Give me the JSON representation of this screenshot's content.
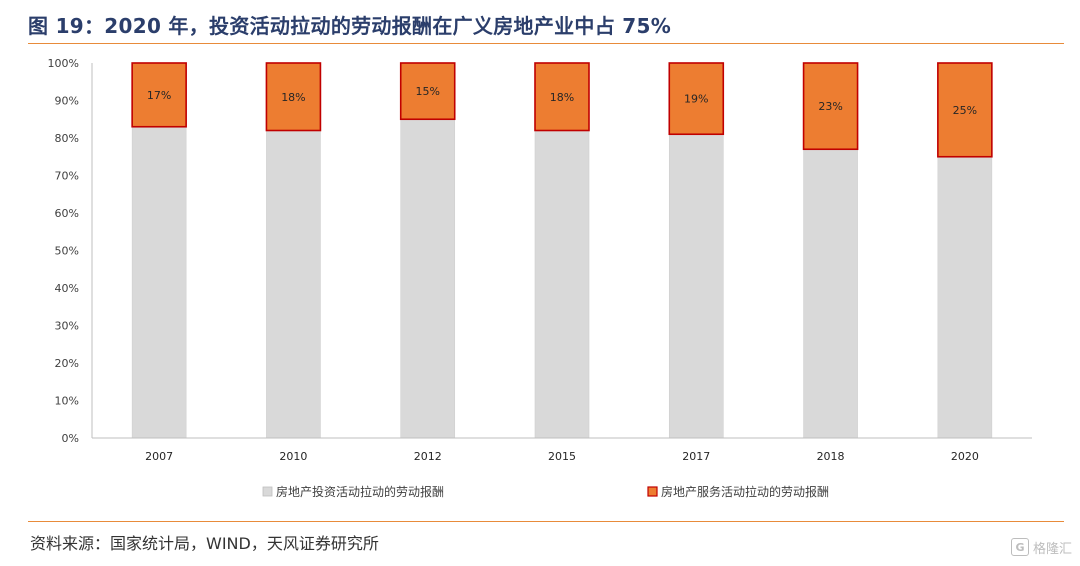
{
  "title": "图 19：2020 年，投资活动拉动的劳动报酬在广义房地产业中占 75%",
  "source": "资料来源：国家统计局，WIND，天风证券研究所",
  "watermark": {
    "text": "格隆汇",
    "logo": "G"
  },
  "colors": {
    "title": "#2b3e6b",
    "rule": "#e88b3a",
    "series1_fill": "#d9d9d9",
    "series2_fill": "#ed7d31",
    "series2_border": "#c00000"
  },
  "chart_data": {
    "type": "bar",
    "stacked": true,
    "categories": [
      "2007",
      "2010",
      "2012",
      "2015",
      "2017",
      "2018",
      "2020"
    ],
    "series": [
      {
        "name": "房地产投资活动拉动的劳动报酬",
        "values": [
          83,
          82,
          85,
          82,
          81,
          77,
          75
        ],
        "color": "#d9d9d9"
      },
      {
        "name": "房地产服务活动拉动的劳动报酬",
        "values": [
          17,
          18,
          15,
          18,
          19,
          23,
          25
        ],
        "color": "#ed7d31",
        "data_labels": [
          "17%",
          "18%",
          "15%",
          "18%",
          "19%",
          "23%",
          "25%"
        ]
      }
    ],
    "yticks": [
      "0%",
      "10%",
      "20%",
      "30%",
      "40%",
      "50%",
      "60%",
      "70%",
      "80%",
      "90%",
      "100%"
    ],
    "ylim": [
      0,
      100
    ],
    "grid": false,
    "legend_position": "bottom"
  }
}
